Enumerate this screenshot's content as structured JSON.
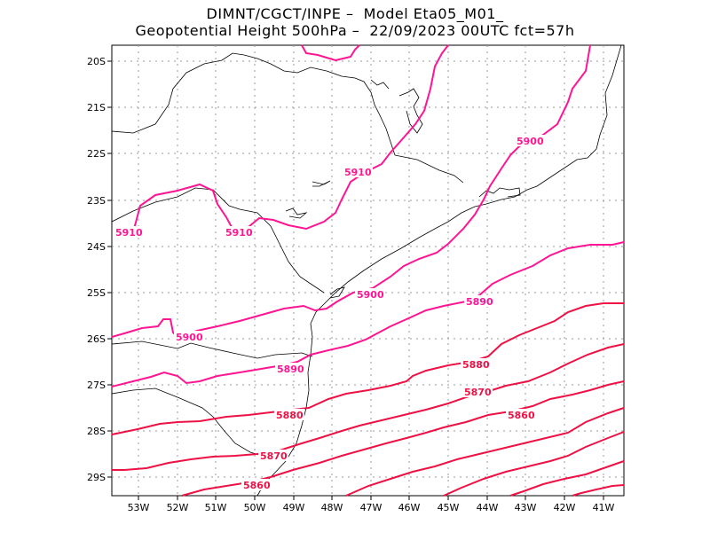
{
  "title": {
    "line1": "DIMNT/CGCT/INPE –  Model Eta05_M01_",
    "line2": "Geopotential Height 500hPa –  22/09/2023 00UTC fct=57h"
  },
  "colors": {
    "contour_magenta": "#ff1493",
    "contour_red": "#ee1144",
    "coast": "#000000",
    "grid": "#999999"
  },
  "axes": {
    "lon_labels": [
      "53W",
      "52W",
      "51W",
      "50W",
      "49W",
      "48W",
      "47W",
      "46W",
      "45W",
      "44W",
      "43W",
      "42W",
      "41W"
    ],
    "lat_labels": [
      "20S",
      "21S",
      "22S",
      "23S",
      "24S",
      "25S",
      "26S",
      "27S",
      "28S",
      "29S"
    ]
  },
  "contour_labels": [
    {
      "id": "l5910a",
      "text": "5910"
    },
    {
      "id": "l5910b",
      "text": "5910"
    },
    {
      "id": "l5910c",
      "text": "5910"
    },
    {
      "id": "l5900a",
      "text": "5900"
    },
    {
      "id": "l5900b",
      "text": "5900"
    },
    {
      "id": "l5900c",
      "text": "5900"
    },
    {
      "id": "l5890a",
      "text": "5890"
    },
    {
      "id": "l5890b",
      "text": "5890"
    },
    {
      "id": "l5880a",
      "text": "5880"
    },
    {
      "id": "l5880b",
      "text": "5880"
    },
    {
      "id": "l5870a",
      "text": "5870"
    },
    {
      "id": "l5870b",
      "text": "5870"
    },
    {
      "id": "l5860a",
      "text": "5860"
    },
    {
      "id": "l5860b",
      "text": "5860"
    }
  ]
}
